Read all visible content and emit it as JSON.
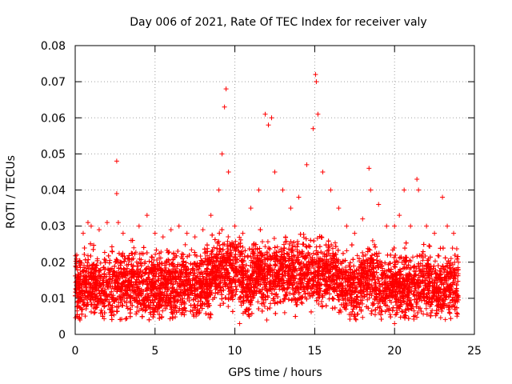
{
  "chart_data": {
    "type": "scatter",
    "title": "Day 006 of 2021, Rate Of TEC Index for receiver valy",
    "xlabel": "GPS time / hours",
    "ylabel": "ROTI / TECUs",
    "xlim": [
      0,
      25
    ],
    "ylim": [
      0,
      0.08
    ],
    "x_ticks": [
      0,
      5,
      10,
      15,
      20,
      25
    ],
    "x_tick_labels": [
      "0",
      "5",
      "10",
      "15",
      "20",
      "25"
    ],
    "y_ticks": [
      0,
      0.01,
      0.02,
      0.03,
      0.04,
      0.05,
      0.06,
      0.07,
      0.08
    ],
    "y_tick_labels": [
      "0",
      "0.01",
      "0.02",
      "0.03",
      "0.04",
      "0.05",
      "0.06",
      "0.07",
      "0.08"
    ],
    "grid": true,
    "marker": "+",
    "marker_color": "#ff0000",
    "series": [
      {
        "name": "ROTI",
        "note": "dense band 0.005-0.025 TECU/s across 0-24 h; representative envelope points listed",
        "points": [
          [
            0.1,
            0.005
          ],
          [
            0.1,
            0.022
          ],
          [
            0.5,
            0.028
          ],
          [
            0.8,
            0.031
          ],
          [
            1.0,
            0.03
          ],
          [
            1.5,
            0.029
          ],
          [
            2.0,
            0.031
          ],
          [
            2.6,
            0.048
          ],
          [
            2.6,
            0.039
          ],
          [
            2.7,
            0.031
          ],
          [
            3.0,
            0.028
          ],
          [
            3.5,
            0.026
          ],
          [
            4.0,
            0.03
          ],
          [
            4.5,
            0.033
          ],
          [
            5.0,
            0.028
          ],
          [
            5.5,
            0.027
          ],
          [
            6.0,
            0.029
          ],
          [
            6.5,
            0.03
          ],
          [
            7.0,
            0.028
          ],
          [
            7.5,
            0.027
          ],
          [
            8.0,
            0.029
          ],
          [
            8.5,
            0.033
          ],
          [
            9.0,
            0.04
          ],
          [
            9.2,
            0.05
          ],
          [
            9.35,
            0.063
          ],
          [
            9.45,
            0.068
          ],
          [
            9.6,
            0.045
          ],
          [
            10.0,
            0.03
          ],
          [
            10.3,
            0.003
          ],
          [
            10.5,
            0.028
          ],
          [
            11.0,
            0.035
          ],
          [
            11.5,
            0.04
          ],
          [
            11.9,
            0.061
          ],
          [
            12.1,
            0.058
          ],
          [
            12.3,
            0.06
          ],
          [
            12.5,
            0.045
          ],
          [
            13.0,
            0.04
          ],
          [
            13.5,
            0.035
          ],
          [
            14.0,
            0.038
          ],
          [
            14.5,
            0.047
          ],
          [
            14.9,
            0.057
          ],
          [
            15.05,
            0.072
          ],
          [
            15.1,
            0.07
          ],
          [
            15.2,
            0.061
          ],
          [
            15.5,
            0.045
          ],
          [
            16.0,
            0.04
          ],
          [
            16.5,
            0.035
          ],
          [
            17.0,
            0.03
          ],
          [
            17.5,
            0.028
          ],
          [
            18.0,
            0.032
          ],
          [
            18.4,
            0.046
          ],
          [
            18.5,
            0.04
          ],
          [
            19.0,
            0.036
          ],
          [
            19.5,
            0.03
          ],
          [
            20.0,
            0.03
          ],
          [
            20.3,
            0.033
          ],
          [
            20.6,
            0.04
          ],
          [
            21.0,
            0.03
          ],
          [
            21.4,
            0.043
          ],
          [
            21.5,
            0.04
          ],
          [
            22.0,
            0.03
          ],
          [
            22.5,
            0.028
          ],
          [
            23.0,
            0.038
          ],
          [
            23.3,
            0.03
          ],
          [
            23.7,
            0.028
          ],
          [
            23.9,
            0.01
          ],
          [
            20.0,
            0.003
          ],
          [
            12.0,
            0.004
          ],
          [
            0.3,
            0.004
          ],
          [
            24.0,
            0.02
          ]
        ]
      }
    ]
  }
}
